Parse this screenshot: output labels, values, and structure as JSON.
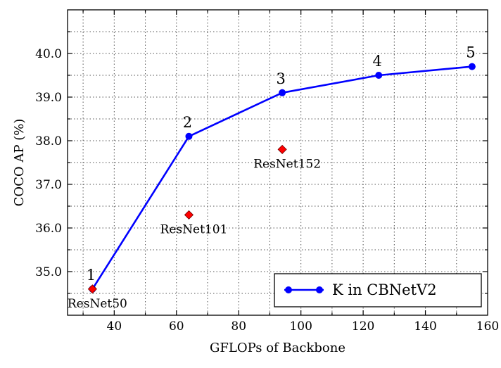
{
  "chart_data": {
    "type": "line",
    "title": "",
    "xlabel": "GFLOPs of Backbone",
    "ylabel": "COCO AP (%)",
    "xlim": [
      25,
      160
    ],
    "ylim": [
      34.0,
      41.0
    ],
    "x_ticks": [
      40,
      60,
      80,
      100,
      120,
      140,
      160
    ],
    "x_tick_labels": [
      "40",
      "60",
      "80",
      "100",
      "120",
      "140",
      "160"
    ],
    "y_ticks": [
      35.0,
      36.0,
      37.0,
      38.0,
      39.0,
      40.0
    ],
    "y_tick_labels": [
      "35.0",
      "36.0",
      "37.0",
      "38.0",
      "39.0",
      "40.0"
    ],
    "grid": true,
    "legend_position": "bottom-right",
    "series": [
      {
        "name": "K in CBNetV2",
        "color": "#0000ff",
        "x": [
          33,
          64,
          94,
          125,
          155
        ],
        "y": [
          34.6,
          38.1,
          39.1,
          39.5,
          39.7
        ],
        "point_labels": [
          "1",
          "2",
          "3",
          "4",
          "5"
        ]
      }
    ],
    "reference_points": [
      {
        "label": "ResNet50",
        "x": 33,
        "y": 34.6,
        "color": "#ff0000"
      },
      {
        "label": "ResNet101",
        "x": 64,
        "y": 36.3,
        "color": "#ff0000"
      },
      {
        "label": "ResNet152",
        "x": 94,
        "y": 37.8,
        "color": "#ff0000"
      }
    ]
  }
}
